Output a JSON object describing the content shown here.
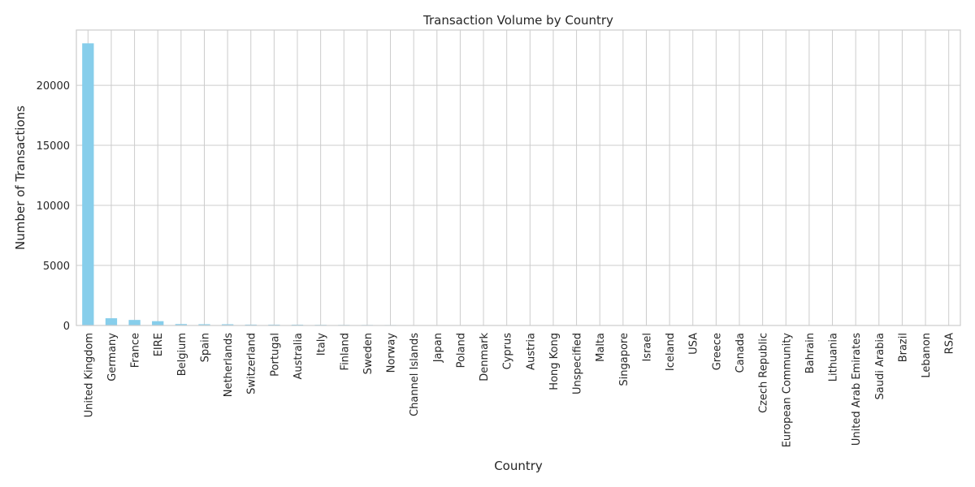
{
  "chart_data": {
    "type": "bar",
    "title": "Transaction Volume by Country",
    "xlabel": "Country",
    "ylabel": "Number of Transactions",
    "ylim": [
      0,
      24600
    ],
    "yticks": [
      0,
      5000,
      10000,
      15000,
      20000
    ],
    "grid": true,
    "bar_color": "#87ceeb",
    "categories": [
      "United Kingdom",
      "Germany",
      "France",
      "EIRE",
      "Belgium",
      "Spain",
      "Netherlands",
      "Switzerland",
      "Portugal",
      "Australia",
      "Italy",
      "Finland",
      "Sweden",
      "Norway",
      "Channel Islands",
      "Japan",
      "Poland",
      "Denmark",
      "Cyprus",
      "Austria",
      "Hong Kong",
      "Unspecified",
      "Malta",
      "Singapore",
      "Israel",
      "Iceland",
      "USA",
      "Greece",
      "Canada",
      "Czech Republic",
      "European Community",
      "Bahrain",
      "Lithuania",
      "United Arab Emirates",
      "Saudi Arabia",
      "Brazil",
      "Lebanon",
      "RSA"
    ],
    "values": [
      23494,
      603,
      461,
      360,
      119,
      105,
      101,
      74,
      71,
      69,
      55,
      48,
      46,
      40,
      33,
      28,
      24,
      21,
      20,
      19,
      15,
      13,
      10,
      10,
      9,
      7,
      7,
      6,
      6,
      5,
      5,
      4,
      4,
      3,
      2,
      1,
      1,
      1
    ]
  }
}
